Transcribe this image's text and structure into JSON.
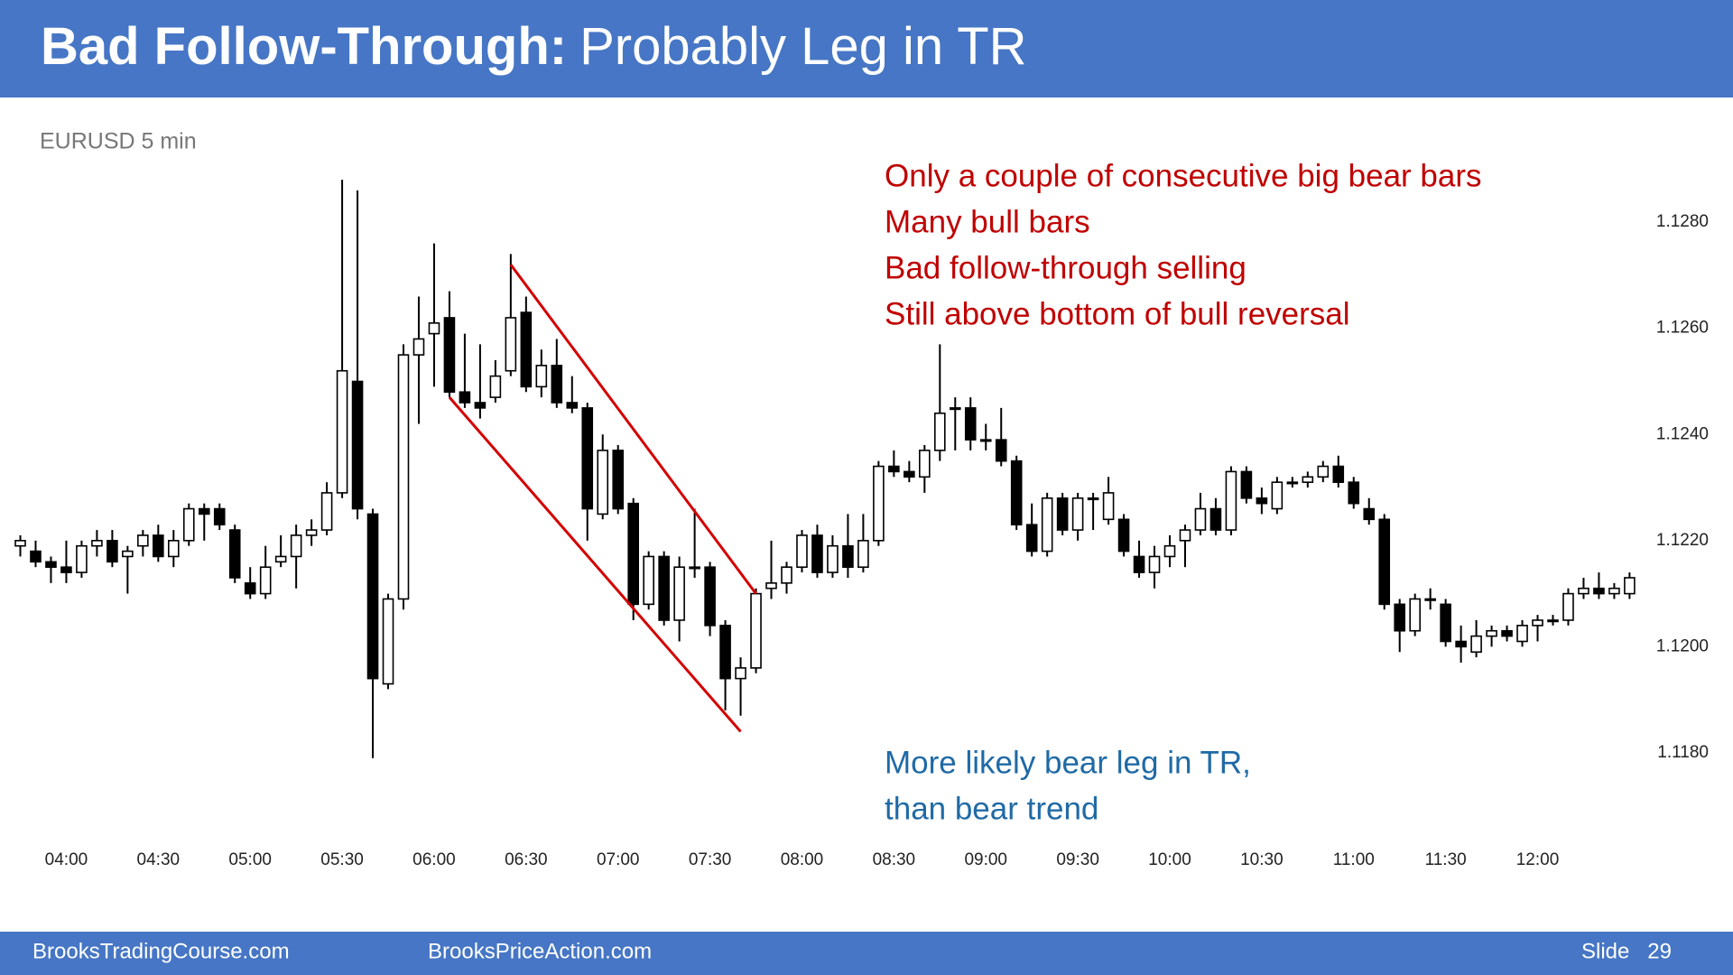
{
  "slide": {
    "title_bold": "Bad Follow-Through:",
    "title_plain": "Probably Leg in TR",
    "footer_left": "BrooksTradingCourse.com",
    "footer_middle": "BrooksPriceAction.com",
    "slide_label": "Slide",
    "slide_number": 29
  },
  "chart_data": {
    "type": "candlestick",
    "title": "EURUSD 5 min",
    "x": [
      "03:45",
      "03:50",
      "03:55",
      "04:00",
      "04:05",
      "04:10",
      "04:15",
      "04:20",
      "04:25",
      "04:30",
      "04:35",
      "04:40",
      "04:45",
      "04:50",
      "04:55",
      "05:00",
      "05:05",
      "05:10",
      "05:15",
      "05:20",
      "05:25",
      "05:30",
      "05:35",
      "05:40",
      "05:45",
      "05:50",
      "05:55",
      "06:00",
      "06:05",
      "06:10",
      "06:15",
      "06:20",
      "06:25",
      "06:30",
      "06:35",
      "06:40",
      "06:45",
      "06:50",
      "06:55",
      "07:00",
      "07:05",
      "07:10",
      "07:15",
      "07:20",
      "07:25",
      "07:30",
      "07:35",
      "07:40",
      "07:45",
      "07:50",
      "07:55",
      "08:00",
      "08:05",
      "08:10",
      "08:15",
      "08:20",
      "08:25",
      "08:30",
      "08:35",
      "08:40",
      "08:45",
      "08:50",
      "08:55",
      "09:00",
      "09:05",
      "09:10",
      "09:15",
      "09:20",
      "09:25",
      "09:30",
      "09:35",
      "09:40",
      "09:45",
      "09:50",
      "09:55",
      "10:00",
      "10:05",
      "10:10",
      "10:15",
      "10:20",
      "10:25",
      "10:30",
      "10:35",
      "10:40",
      "10:45",
      "10:50",
      "10:55",
      "11:00",
      "11:05",
      "11:10",
      "11:15",
      "11:20",
      "11:25",
      "11:30",
      "11:35",
      "11:40",
      "11:45",
      "11:50",
      "11:55",
      "12:00",
      "12:05",
      "12:10",
      "12:15",
      "12:20",
      "12:25",
      "12:30"
    ],
    "open": [
      1.1219,
      1.1218,
      1.1216,
      1.1215,
      1.1214,
      1.1219,
      1.122,
      1.1217,
      1.1219,
      1.1221,
      1.1217,
      1.122,
      1.1226,
      1.1226,
      1.1222,
      1.1212,
      1.121,
      1.1216,
      1.1217,
      1.1221,
      1.1222,
      1.1229,
      1.125,
      1.1225,
      1.1193,
      1.1209,
      1.1255,
      1.1259,
      1.1262,
      1.1248,
      1.1246,
      1.1247,
      1.1252,
      1.1263,
      1.1249,
      1.1253,
      1.1246,
      1.1245,
      1.1225,
      1.1237,
      1.1227,
      1.1208,
      1.1217,
      1.1205,
      1.1215,
      1.1215,
      1.1204,
      1.1194,
      1.1196,
      1.1211,
      1.1212,
      1.1215,
      1.1221,
      1.1214,
      1.1219,
      1.1215,
      1.122,
      1.1234,
      1.1233,
      1.1232,
      1.1237,
      1.1245,
      1.1245,
      1.1239,
      1.1239,
      1.1235,
      1.1223,
      1.1218,
      1.1228,
      1.1222,
      1.1228,
      1.1224,
      1.1224,
      1.1217,
      1.1214,
      1.1217,
      1.122,
      1.1222,
      1.1226,
      1.1222,
      1.1233,
      1.1228,
      1.1226,
      1.1231,
      1.1231,
      1.1232,
      1.1234,
      1.1231,
      1.1226,
      1.1224,
      1.1208,
      1.1203,
      1.1209,
      1.1208,
      1.1201,
      1.1199,
      1.1202,
      1.1203,
      1.1201,
      1.1204,
      1.1205,
      1.1205,
      1.121,
      1.1211,
      1.121,
      1.121
    ],
    "high": [
      1.1221,
      1.122,
      1.1217,
      1.122,
      1.122,
      1.1222,
      1.1222,
      1.1219,
      1.1222,
      1.1223,
      1.1222,
      1.1227,
      1.1227,
      1.1227,
      1.1223,
      1.1215,
      1.1219,
      1.1221,
      1.1223,
      1.1224,
      1.1231,
      1.1288,
      1.1286,
      1.1226,
      1.121,
      1.1257,
      1.1266,
      1.1276,
      1.1267,
      1.1259,
      1.1257,
      1.1254,
      1.1274,
      1.1266,
      1.1256,
      1.1258,
      1.1251,
      1.1246,
      1.124,
      1.1238,
      1.1228,
      1.1218,
      1.1218,
      1.1217,
      1.1226,
      1.1216,
      1.1205,
      1.1198,
      1.1211,
      1.122,
      1.1216,
      1.1222,
      1.1223,
      1.1221,
      1.1225,
      1.1225,
      1.1235,
      1.1237,
      1.1235,
      1.1238,
      1.1257,
      1.1247,
      1.1247,
      1.1242,
      1.1245,
      1.1236,
      1.1227,
      1.1229,
      1.1229,
      1.1229,
      1.1229,
      1.1232,
      1.1225,
      1.122,
      1.1219,
      1.1221,
      1.1223,
      1.1229,
      1.1228,
      1.1234,
      1.1234,
      1.123,
      1.1232,
      1.1232,
      1.1233,
      1.1235,
      1.1236,
      1.1232,
      1.1228,
      1.1225,
      1.1209,
      1.121,
      1.1211,
      1.1209,
      1.1204,
      1.1205,
      1.1204,
      1.1204,
      1.1205,
      1.1206,
      1.1206,
      1.1211,
      1.1213,
      1.1214,
      1.1212,
      1.1214
    ],
    "low": [
      1.1217,
      1.1215,
      1.1212,
      1.1212,
      1.1213,
      1.1217,
      1.1215,
      1.121,
      1.1217,
      1.1216,
      1.1215,
      1.1219,
      1.122,
      1.1222,
      1.1212,
      1.1209,
      1.1209,
      1.1215,
      1.1211,
      1.1219,
      1.1221,
      1.1228,
      1.1224,
      1.1179,
      1.1192,
      1.1207,
      1.1242,
      1.1249,
      1.1247,
      1.1245,
      1.1243,
      1.1246,
      1.1251,
      1.1248,
      1.1247,
      1.1245,
      1.1244,
      1.122,
      1.1224,
      1.1225,
      1.1205,
      1.1207,
      1.1204,
      1.1201,
      1.1213,
      1.1202,
      1.1188,
      1.1187,
      1.1195,
      1.1209,
      1.121,
      1.1214,
      1.1213,
      1.1213,
      1.1213,
      1.1214,
      1.1219,
      1.1232,
      1.1231,
      1.1229,
      1.1235,
      1.1237,
      1.1237,
      1.1237,
      1.1234,
      1.1222,
      1.1217,
      1.1217,
      1.1221,
      1.122,
      1.1222,
      1.1223,
      1.1217,
      1.1213,
      1.1211,
      1.1215,
      1.1215,
      1.1221,
      1.1221,
      1.1221,
      1.1227,
      1.1225,
      1.1225,
      1.123,
      1.123,
      1.1231,
      1.123,
      1.1226,
      1.1223,
      1.1207,
      1.1199,
      1.1202,
      1.1207,
      1.12,
      1.1197,
      1.1198,
      1.12,
      1.1201,
      1.12,
      1.1201,
      1.1204,
      1.1204,
      1.1209,
      1.1209,
      1.1209,
      1.1209
    ],
    "close": [
      1.122,
      1.1216,
      1.1215,
      1.1214,
      1.1219,
      1.122,
      1.1216,
      1.1218,
      1.1221,
      1.1217,
      1.122,
      1.1226,
      1.1225,
      1.1223,
      1.1213,
      1.121,
      1.1215,
      1.1217,
      1.1221,
      1.1222,
      1.1229,
      1.1252,
      1.1226,
      1.1194,
      1.1209,
      1.1255,
      1.1258,
      1.1261,
      1.1248,
      1.1246,
      1.1245,
      1.1251,
      1.1262,
      1.1249,
      1.1253,
      1.1246,
      1.1245,
      1.1226,
      1.1237,
      1.1226,
      1.1208,
      1.1217,
      1.1205,
      1.1215,
      1.1215,
      1.1204,
      1.1194,
      1.1196,
      1.121,
      1.1212,
      1.1215,
      1.1221,
      1.1214,
      1.1219,
      1.1215,
      1.122,
      1.1234,
      1.1233,
      1.1232,
      1.1237,
      1.1244,
      1.1245,
      1.1239,
      1.1239,
      1.1235,
      1.1223,
      1.1218,
      1.1228,
      1.1222,
      1.1228,
      1.1228,
      1.1229,
      1.1218,
      1.1214,
      1.1217,
      1.1219,
      1.1222,
      1.1226,
      1.1222,
      1.1233,
      1.1228,
      1.1227,
      1.1231,
      1.1231,
      1.1232,
      1.1234,
      1.1231,
      1.1227,
      1.1224,
      1.1208,
      1.1203,
      1.1209,
      1.1209,
      1.1201,
      1.12,
      1.1202,
      1.1203,
      1.1202,
      1.1204,
      1.1205,
      1.1205,
      1.121,
      1.1211,
      1.121,
      1.1211,
      1.1213
    ],
    "up_color": "#ffffff",
    "down_color": "#000000",
    "ylim": [
      1.117,
      1.13
    ],
    "yticks": [
      {
        "value": 1.118,
        "label": "1.1180"
      },
      {
        "value": 1.12,
        "label": "1.1200"
      },
      {
        "value": 1.122,
        "label": "1.1220"
      },
      {
        "value": 1.124,
        "label": "1.1240"
      },
      {
        "value": 1.126,
        "label": "1.1260"
      },
      {
        "value": 1.128,
        "label": "1.1280"
      }
    ],
    "xticks": [
      "04:00",
      "04:30",
      "05:00",
      "05:30",
      "06:00",
      "06:30",
      "07:00",
      "07:30",
      "08:00",
      "08:30",
      "09:00",
      "09:30",
      "10:00",
      "10:30",
      "11:00",
      "11:30",
      "12:00"
    ],
    "channel_lines": [
      {
        "from": [
          "06:05",
          1.1247
        ],
        "to": [
          "07:40",
          1.1184
        ],
        "color": "#d40000"
      },
      {
        "from": [
          "06:25",
          1.1272
        ],
        "to": [
          "07:45",
          1.121
        ],
        "color": "#d40000"
      }
    ],
    "annotations": [
      {
        "color": "#c00000",
        "lines": [
          "Only a couple of consecutive big bear bars",
          "Many bull bars",
          "Bad follow-through selling",
          "Still above bottom of bull reversal"
        ]
      },
      {
        "color": "#1f6aa5",
        "lines": [
          "More likely bear leg in TR,",
          "than bear trend"
        ]
      }
    ]
  }
}
